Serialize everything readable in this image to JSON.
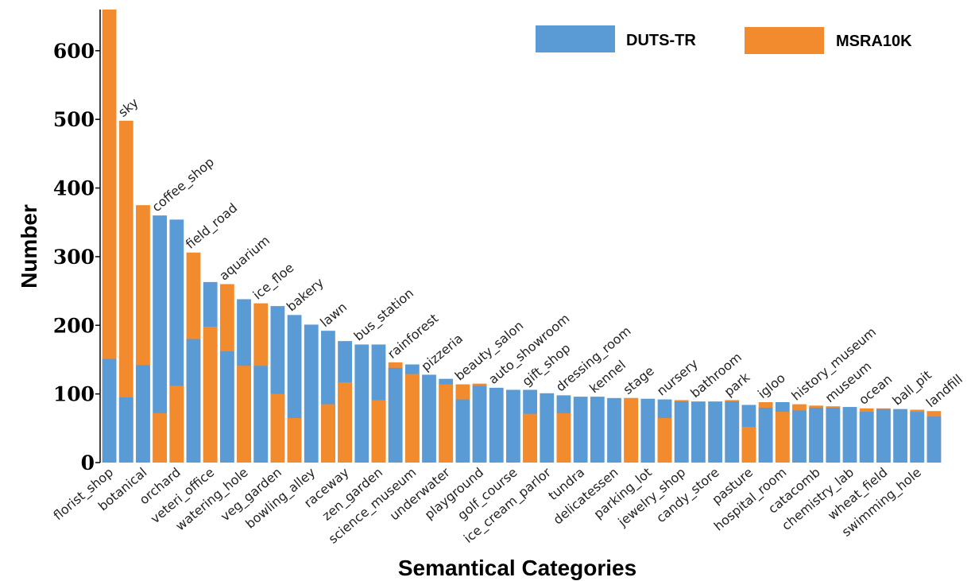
{
  "chart_data": {
    "type": "bar",
    "stacking": "overlapping",
    "xlabel": "Semantical Categories",
    "ylabel": "Number",
    "ylim": [
      0,
      660
    ],
    "yticks": [
      0,
      100,
      200,
      300,
      400,
      500,
      600
    ],
    "legend_placement": "top-right",
    "grid": false,
    "series": [
      {
        "name": "DUTS-TR",
        "color": "#5b9bd5"
      },
      {
        "name": "MSRA10K",
        "color": "#f28a2e"
      }
    ],
    "categories": [
      "florist_shop",
      "sky",
      "botanical",
      "coffee_shop",
      "orchard",
      "field_road",
      "veteri_office",
      "aquarium",
      "watering_hole",
      "ice_floe",
      "veg_garden",
      "bakery",
      "bowling_alley",
      "lawn",
      "raceway",
      "bus_station",
      "zen_garden",
      "rainforest",
      "science_museum",
      "pizzeria",
      "underwater",
      "beauty_salon",
      "playground",
      "auto_showroom",
      "golf_course",
      "gift_shop",
      "ice_cream_parlor",
      "dressing_room",
      "tundra",
      "kennel",
      "delicatessen",
      "stage",
      "parking_lot",
      "nursery",
      "jewelry_shop",
      "bathroom",
      "candy_store",
      "park",
      "pasture",
      "igloo",
      "hospital_room",
      "history_museum",
      "catacomb",
      "museum",
      "chemistry_lab",
      "ocean",
      "wheat_field",
      "ball_pit",
      "swimming_hole",
      "landfill"
    ],
    "label_rows": [
      [
        "florist_shop",
        "botanical",
        "orchard",
        "veteri_office",
        "watering_hole",
        "veg_garden",
        "bowling_alley",
        "raceway",
        "zen_garden",
        "science_museum",
        "underwater",
        "playground",
        "golf_course",
        "ice_cream_parlor",
        "tundra",
        "delicatessen",
        "parking_lot",
        "jewelry_shop",
        "candy_store",
        "pasture",
        "hospital_room",
        "catacomb",
        "chemistry_lab",
        "wheat_field",
        "swimming_hole"
      ],
      [
        "sky",
        "coffee_shop",
        "field_road",
        "aquarium",
        "ice_floe",
        "bakery",
        "lawn",
        "bus_station",
        "rainforest",
        "pizzeria",
        "beauty_salon",
        "auto_showroom",
        "gift_shop",
        "dressing_room",
        "kennel",
        "stage",
        "nursery",
        "bathroom",
        "park",
        "igloo",
        "history_museum",
        "museum",
        "ocean",
        "ball_pit",
        "landfill"
      ]
    ],
    "duts_tr": [
      151,
      95,
      142,
      360,
      354,
      180,
      263,
      162,
      238,
      141,
      228,
      215,
      201,
      192,
      177,
      172,
      172,
      138,
      143,
      128,
      122,
      92,
      112,
      109,
      106,
      106,
      101,
      98,
      96,
      96,
      94,
      94,
      93,
      92,
      89,
      89,
      89,
      89,
      84,
      80,
      88,
      76,
      80,
      80,
      81,
      74,
      78,
      78,
      74,
      67
    ],
    "msra10k": [
      660,
      498,
      375,
      72,
      112,
      306,
      198,
      260,
      141,
      232,
      100,
      65,
      0,
      85,
      117,
      0,
      91,
      146,
      129,
      0,
      114,
      114,
      115,
      0,
      0,
      71,
      0,
      72,
      0,
      0,
      0,
      94,
      0,
      65,
      91,
      0,
      0,
      91,
      52,
      88,
      74,
      85,
      83,
      82,
      0,
      79,
      79,
      0,
      77,
      75
    ]
  }
}
